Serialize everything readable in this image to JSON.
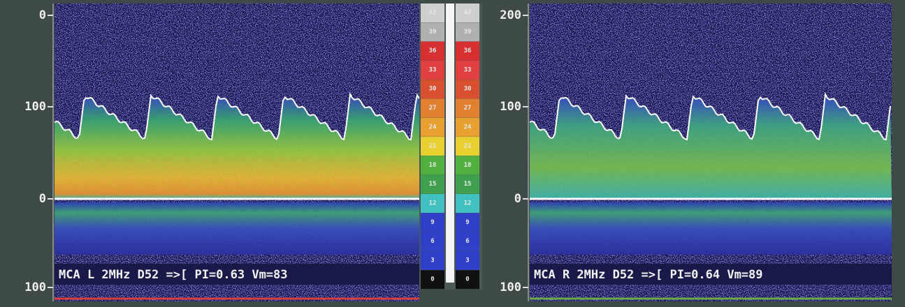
{
  "panels": [
    {
      "axis_labels": [
        "0",
        "100",
        "0",
        "100"
      ],
      "info": "MCA L 2MHz D52 =>[ PI=0.63 Vm=83"
    },
    {
      "axis_labels": [
        "200",
        "100",
        "0",
        "100"
      ],
      "info": "MCA R 2MHz D52 =>[ PI=0.64 Vm=89"
    }
  ],
  "colorbar": {
    "labels": [
      "42",
      "39",
      "36",
      "33",
      "30",
      "27",
      "24",
      "21",
      "18",
      "15",
      "12",
      "9",
      "6",
      "3",
      "0"
    ]
  }
}
